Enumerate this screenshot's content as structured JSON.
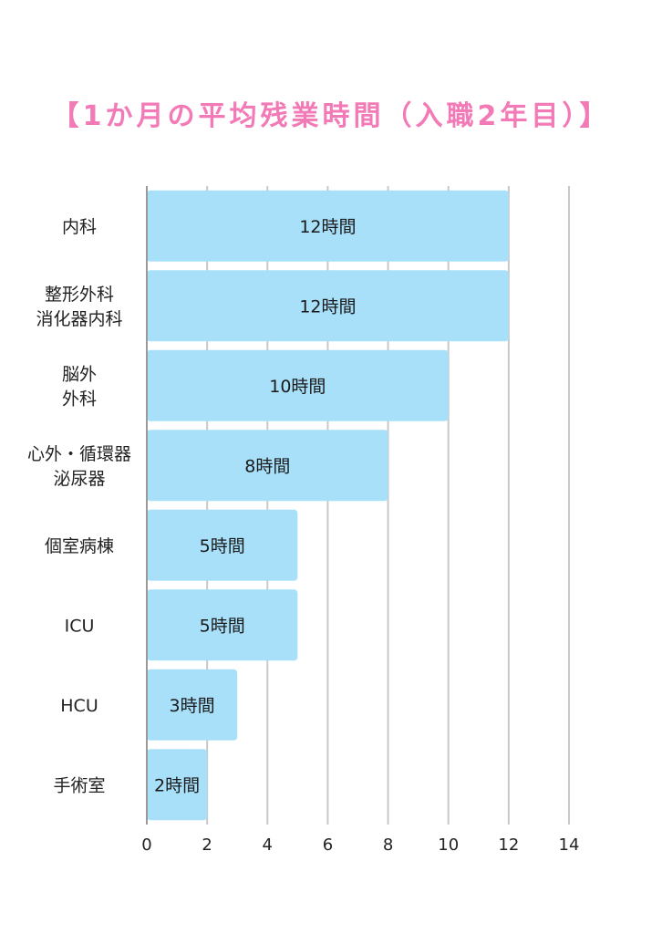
{
  "chart_data": {
    "type": "bar",
    "orientation": "horizontal",
    "title": "【1か月の平均残業時間（入職2年目）】",
    "categories": [
      [
        "内科"
      ],
      [
        "整形外科",
        "消化器内科"
      ],
      [
        "脳外",
        "外科"
      ],
      [
        "心外・循環器",
        "泌尿器"
      ],
      [
        "個室病棟"
      ],
      [
        "ICU"
      ],
      [
        "HCU"
      ],
      [
        "手術室"
      ]
    ],
    "values": [
      12,
      12,
      10,
      8,
      5,
      5,
      3,
      2
    ],
    "data_labels": [
      "12時間",
      "12時間",
      "10時間",
      "8時間",
      "5時間",
      "5時間",
      "3時間",
      "2時間"
    ],
    "xlim": [
      0,
      14
    ],
    "xticks": [
      0,
      2,
      4,
      6,
      8,
      10,
      12,
      14
    ],
    "xlabel": "",
    "ylabel": "",
    "grid": true,
    "legend": "none",
    "colors": {
      "bar": "#a8e0fa",
      "grid": "#c8c8c8",
      "axis": "#9a9a9a",
      "title": "#f27bb7"
    }
  }
}
